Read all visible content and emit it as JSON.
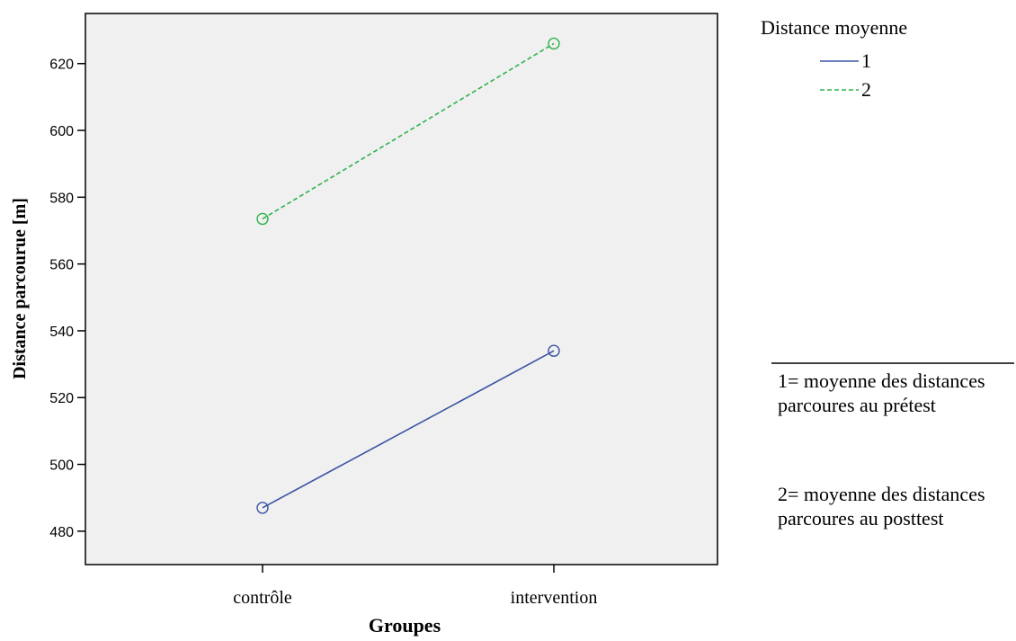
{
  "chart_data": {
    "type": "line",
    "title": "",
    "xlabel": "Groupes",
    "ylabel": "Distance parcourue [m]",
    "categories": [
      "contrôle",
      "intervention"
    ],
    "ylim": [
      470,
      635
    ],
    "yticks": [
      480,
      500,
      520,
      540,
      560,
      580,
      600,
      620
    ],
    "grid": false,
    "legend": {
      "title": "Distance moyenne",
      "position": "top-right"
    },
    "series": [
      {
        "name": "1",
        "values": [
          487,
          534
        ],
        "color": "#3953a4",
        "style": "solid",
        "marker": "circle"
      },
      {
        "name": "2",
        "values": [
          573.5,
          626
        ],
        "color": "#2db34a",
        "style": "dashed",
        "marker": "circle"
      }
    ]
  },
  "notes": {
    "note1": "1= moyenne des distances parcoures au prétest",
    "note2": "2= moyenne des distances parcoures au posttest"
  }
}
